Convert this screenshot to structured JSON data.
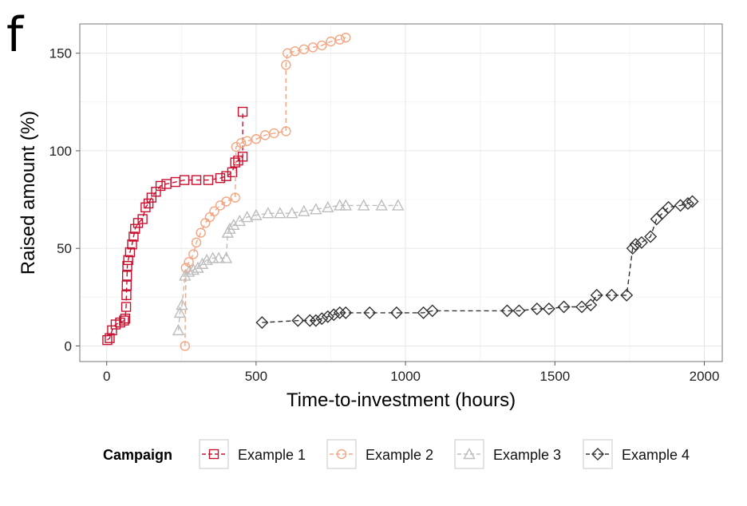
{
  "panel_label": "f",
  "chart_data": {
    "type": "scatter",
    "title": "",
    "xlabel": "Time-to-investment (hours)",
    "ylabel": "Raised amount (%)",
    "xlim": [
      -90,
      2060
    ],
    "ylim": [
      -8,
      165
    ],
    "x_ticks": [
      0,
      500,
      1000,
      1500,
      2000
    ],
    "y_ticks": [
      0,
      50,
      100,
      150
    ],
    "grid": true,
    "legend": {
      "title": "Campaign",
      "placement": "bottom"
    },
    "series": [
      {
        "name": "Example 1",
        "color": "#c8102e",
        "marker": "square",
        "points": [
          [
            2,
            3
          ],
          [
            10,
            4
          ],
          [
            18,
            8
          ],
          [
            30,
            11
          ],
          [
            45,
            12
          ],
          [
            58,
            13
          ],
          [
            62,
            14
          ],
          [
            65,
            20
          ],
          [
            66,
            26
          ],
          [
            67,
            31
          ],
          [
            68,
            36
          ],
          [
            69,
            41
          ],
          [
            72,
            44
          ],
          [
            78,
            48
          ],
          [
            85,
            52
          ],
          [
            90,
            56
          ],
          [
            95,
            60
          ],
          [
            105,
            63
          ],
          [
            120,
            65
          ],
          [
            130,
            71
          ],
          [
            140,
            73
          ],
          [
            150,
            76
          ],
          [
            165,
            79
          ],
          [
            180,
            82
          ],
          [
            200,
            83
          ],
          [
            230,
            84
          ],
          [
            260,
            85
          ],
          [
            300,
            85
          ],
          [
            340,
            85
          ],
          [
            380,
            86
          ],
          [
            400,
            87
          ],
          [
            420,
            89
          ],
          [
            430,
            94
          ],
          [
            440,
            95
          ],
          [
            455,
            97
          ],
          [
            455,
            120
          ]
        ]
      },
      {
        "name": "Example 2",
        "color": "#f4a582",
        "marker": "circle",
        "points": [
          [
            262,
            0
          ],
          [
            265,
            40
          ],
          [
            275,
            43
          ],
          [
            290,
            47
          ],
          [
            300,
            53
          ],
          [
            315,
            58
          ],
          [
            330,
            63
          ],
          [
            345,
            66
          ],
          [
            360,
            69
          ],
          [
            380,
            72
          ],
          [
            400,
            74
          ],
          [
            430,
            76
          ],
          [
            433,
            102
          ],
          [
            450,
            104
          ],
          [
            470,
            105
          ],
          [
            500,
            106
          ],
          [
            530,
            108
          ],
          [
            560,
            109
          ],
          [
            600,
            110
          ],
          [
            600,
            144
          ],
          [
            605,
            150
          ],
          [
            630,
            151
          ],
          [
            660,
            152
          ],
          [
            690,
            153
          ],
          [
            720,
            154
          ],
          [
            750,
            156
          ],
          [
            780,
            157
          ],
          [
            800,
            158
          ]
        ]
      },
      {
        "name": "Example 3",
        "color": "#bdbdbd",
        "marker": "triangle",
        "points": [
          [
            240,
            8
          ],
          [
            245,
            17
          ],
          [
            252,
            21
          ],
          [
            262,
            36
          ],
          [
            275,
            38
          ],
          [
            290,
            39
          ],
          [
            305,
            40
          ],
          [
            320,
            42
          ],
          [
            335,
            44
          ],
          [
            355,
            45
          ],
          [
            375,
            45
          ],
          [
            400,
            45
          ],
          [
            405,
            58
          ],
          [
            412,
            60
          ],
          [
            425,
            62
          ],
          [
            445,
            64
          ],
          [
            470,
            66
          ],
          [
            500,
            67
          ],
          [
            540,
            68
          ],
          [
            580,
            68
          ],
          [
            620,
            68
          ],
          [
            660,
            69
          ],
          [
            700,
            70
          ],
          [
            740,
            71
          ],
          [
            780,
            72
          ],
          [
            800,
            72
          ],
          [
            860,
            72
          ],
          [
            920,
            72
          ],
          [
            975,
            72
          ]
        ]
      },
      {
        "name": "Example 4",
        "color": "#333333",
        "marker": "diamond",
        "points": [
          [
            520,
            12
          ],
          [
            640,
            13
          ],
          [
            680,
            13
          ],
          [
            700,
            13
          ],
          [
            720,
            14
          ],
          [
            740,
            15
          ],
          [
            760,
            16
          ],
          [
            780,
            17
          ],
          [
            800,
            17
          ],
          [
            880,
            17
          ],
          [
            970,
            17
          ],
          [
            1060,
            17
          ],
          [
            1090,
            18
          ],
          [
            1340,
            18
          ],
          [
            1380,
            18
          ],
          [
            1440,
            19
          ],
          [
            1480,
            19
          ],
          [
            1530,
            20
          ],
          [
            1590,
            20
          ],
          [
            1620,
            21
          ],
          [
            1640,
            26
          ],
          [
            1690,
            26
          ],
          [
            1740,
            26
          ],
          [
            1760,
            50
          ],
          [
            1770,
            52
          ],
          [
            1790,
            53
          ],
          [
            1820,
            56
          ],
          [
            1840,
            65
          ],
          [
            1860,
            68
          ],
          [
            1880,
            71
          ],
          [
            1920,
            72
          ],
          [
            1945,
            73
          ],
          [
            1960,
            74
          ]
        ]
      }
    ]
  }
}
